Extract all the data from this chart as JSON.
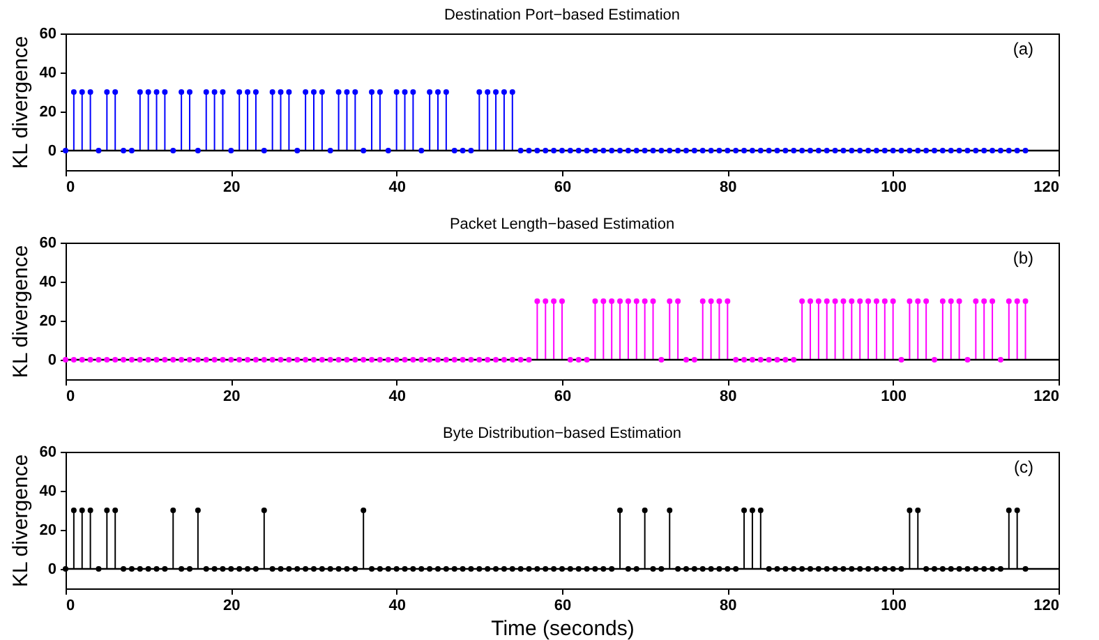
{
  "chart_data": [
    {
      "type": "lollipop",
      "title": "Destination Port−based Estimation",
      "ylabel": "KL divergence",
      "annotations": [
        "(a)"
      ],
      "x": [
        0,
        1,
        2,
        3,
        4,
        5,
        6,
        7,
        8,
        9,
        10,
        11,
        12,
        13,
        14,
        15,
        16,
        17,
        18,
        19,
        20,
        21,
        22,
        23,
        24,
        25,
        26,
        27,
        28,
        29,
        30,
        31,
        32,
        33,
        34,
        35,
        36,
        37,
        38,
        39,
        40,
        41,
        42,
        43,
        44,
        45,
        46,
        47,
        48,
        49,
        50,
        51,
        52,
        53,
        54,
        55,
        56,
        57,
        58,
        59,
        60,
        61,
        62,
        63,
        64,
        65,
        66,
        67,
        68,
        69,
        70,
        71,
        72,
        73,
        74,
        75,
        76,
        77,
        78,
        79,
        80,
        81,
        82,
        83,
        84,
        85,
        86,
        87,
        88,
        89,
        90,
        91,
        92,
        93,
        94,
        95,
        96,
        97,
        98,
        99,
        100,
        101,
        102,
        103,
        104,
        105,
        106,
        107,
        108,
        109,
        110,
        111,
        112,
        113,
        114,
        115,
        116
      ],
      "series": [
        {
          "color": "#0000ff",
          "values": [
            0,
            30,
            30,
            30,
            0,
            30,
            30,
            0,
            0,
            30,
            30,
            30,
            30,
            0,
            30,
            30,
            0,
            30,
            30,
            30,
            0,
            30,
            30,
            30,
            0,
            30,
            30,
            30,
            0,
            30,
            30,
            30,
            0,
            30,
            30,
            30,
            0,
            30,
            30,
            0,
            30,
            30,
            30,
            0,
            30,
            30,
            30,
            0,
            0,
            0,
            30,
            30,
            30,
            30,
            30,
            0,
            0,
            0,
            0,
            0,
            0,
            0,
            0,
            0,
            0,
            0,
            0,
            0,
            0,
            0,
            0,
            0,
            0,
            0,
            0,
            0,
            0,
            0,
            0,
            0,
            0,
            0,
            0,
            0,
            0,
            0,
            0,
            0,
            0,
            0,
            0,
            0,
            0,
            0,
            0,
            0,
            0,
            0,
            0,
            0,
            0,
            0,
            0,
            0,
            0,
            0,
            0,
            0,
            0,
            0,
            0,
            0,
            0,
            0,
            0,
            0,
            0
          ]
        }
      ],
      "xlim": [
        0,
        120
      ],
      "xticks": [
        0,
        20,
        40,
        60,
        80,
        100,
        120
      ],
      "ylim": [
        -10,
        60
      ],
      "yticks": [
        0,
        20,
        40,
        60
      ],
      "marker": "circle",
      "grid": false,
      "ref_lines": [
        {
          "axis": "y",
          "value": 0
        }
      ]
    },
    {
      "type": "lollipop",
      "title": "Packet Length−based Estimation",
      "ylabel": "KL divergence",
      "annotations": [
        "(b)"
      ],
      "x": [
        0,
        1,
        2,
        3,
        4,
        5,
        6,
        7,
        8,
        9,
        10,
        11,
        12,
        13,
        14,
        15,
        16,
        17,
        18,
        19,
        20,
        21,
        22,
        23,
        24,
        25,
        26,
        27,
        28,
        29,
        30,
        31,
        32,
        33,
        34,
        35,
        36,
        37,
        38,
        39,
        40,
        41,
        42,
        43,
        44,
        45,
        46,
        47,
        48,
        49,
        50,
        51,
        52,
        53,
        54,
        55,
        56,
        57,
        58,
        59,
        60,
        61,
        62,
        63,
        64,
        65,
        66,
        67,
        68,
        69,
        70,
        71,
        72,
        73,
        74,
        75,
        76,
        77,
        78,
        79,
        80,
        81,
        82,
        83,
        84,
        85,
        86,
        87,
        88,
        89,
        90,
        91,
        92,
        93,
        94,
        95,
        96,
        97,
        98,
        99,
        100,
        101,
        102,
        103,
        104,
        105,
        106,
        107,
        108,
        109,
        110,
        111,
        112,
        113,
        114,
        115,
        116
      ],
      "series": [
        {
          "color": "#ff00ff",
          "values": [
            0,
            0,
            0,
            0,
            0,
            0,
            0,
            0,
            0,
            0,
            0,
            0,
            0,
            0,
            0,
            0,
            0,
            0,
            0,
            0,
            0,
            0,
            0,
            0,
            0,
            0,
            0,
            0,
            0,
            0,
            0,
            0,
            0,
            0,
            0,
            0,
            0,
            0,
            0,
            0,
            0,
            0,
            0,
            0,
            0,
            0,
            0,
            0,
            0,
            0,
            0,
            0,
            0,
            0,
            0,
            0,
            0,
            30,
            30,
            30,
            30,
            0,
            0,
            0,
            30,
            30,
            30,
            30,
            30,
            30,
            30,
            30,
            0,
            30,
            30,
            0,
            0,
            30,
            30,
            30,
            30,
            0,
            0,
            0,
            0,
            0,
            0,
            0,
            0,
            30,
            30,
            30,
            30,
            30,
            30,
            30,
            30,
            30,
            30,
            30,
            30,
            0,
            30,
            30,
            30,
            0,
            30,
            30,
            30,
            0,
            30,
            30,
            30,
            0,
            30,
            30,
            30
          ]
        }
      ],
      "xlim": [
        0,
        120
      ],
      "xticks": [
        0,
        20,
        40,
        60,
        80,
        100,
        120
      ],
      "ylim": [
        -10,
        60
      ],
      "yticks": [
        0,
        20,
        40,
        60
      ],
      "marker": "circle",
      "grid": false,
      "ref_lines": [
        {
          "axis": "y",
          "value": 0
        }
      ]
    },
    {
      "type": "lollipop",
      "title": "Byte Distribution−based Estimation",
      "ylabel": "KL divergence",
      "xlabel": "Time (seconds)",
      "annotations": [
        "(c)"
      ],
      "x": [
        0,
        1,
        2,
        3,
        4,
        5,
        6,
        7,
        8,
        9,
        10,
        11,
        12,
        13,
        14,
        15,
        16,
        17,
        18,
        19,
        20,
        21,
        22,
        23,
        24,
        25,
        26,
        27,
        28,
        29,
        30,
        31,
        32,
        33,
        34,
        35,
        36,
        37,
        38,
        39,
        40,
        41,
        42,
        43,
        44,
        45,
        46,
        47,
        48,
        49,
        50,
        51,
        52,
        53,
        54,
        55,
        56,
        57,
        58,
        59,
        60,
        61,
        62,
        63,
        64,
        65,
        66,
        67,
        68,
        69,
        70,
        71,
        72,
        73,
        74,
        75,
        76,
        77,
        78,
        79,
        80,
        81,
        82,
        83,
        84,
        85,
        86,
        87,
        88,
        89,
        90,
        91,
        92,
        93,
        94,
        95,
        96,
        97,
        98,
        99,
        100,
        101,
        102,
        103,
        104,
        105,
        106,
        107,
        108,
        109,
        110,
        111,
        112,
        113,
        114,
        115,
        116
      ],
      "series": [
        {
          "color": "#000000",
          "values": [
            0,
            30,
            30,
            30,
            0,
            30,
            30,
            0,
            0,
            0,
            0,
            0,
            0,
            30,
            0,
            0,
            30,
            0,
            0,
            0,
            0,
            0,
            0,
            0,
            30,
            0,
            0,
            0,
            0,
            0,
            0,
            0,
            0,
            0,
            0,
            0,
            30,
            0,
            0,
            0,
            0,
            0,
            0,
            0,
            0,
            0,
            0,
            0,
            0,
            0,
            0,
            0,
            0,
            0,
            0,
            0,
            0,
            0,
            0,
            0,
            0,
            0,
            0,
            0,
            0,
            0,
            0,
            30,
            0,
            0,
            30,
            0,
            0,
            30,
            0,
            0,
            0,
            0,
            0,
            0,
            0,
            0,
            30,
            30,
            30,
            0,
            0,
            0,
            0,
            0,
            0,
            0,
            0,
            0,
            0,
            0,
            0,
            0,
            0,
            0,
            0,
            0,
            30,
            30,
            0,
            0,
            0,
            0,
            0,
            0,
            0,
            0,
            0,
            0,
            30,
            30,
            0
          ]
        }
      ],
      "xlim": [
        0,
        120
      ],
      "xticks": [
        0,
        20,
        40,
        60,
        80,
        100,
        120
      ],
      "ylim": [
        -10,
        60
      ],
      "yticks": [
        0,
        20,
        40,
        60
      ],
      "marker": "circle",
      "grid": false,
      "ref_lines": [
        {
          "axis": "y",
          "value": 0
        }
      ]
    }
  ]
}
